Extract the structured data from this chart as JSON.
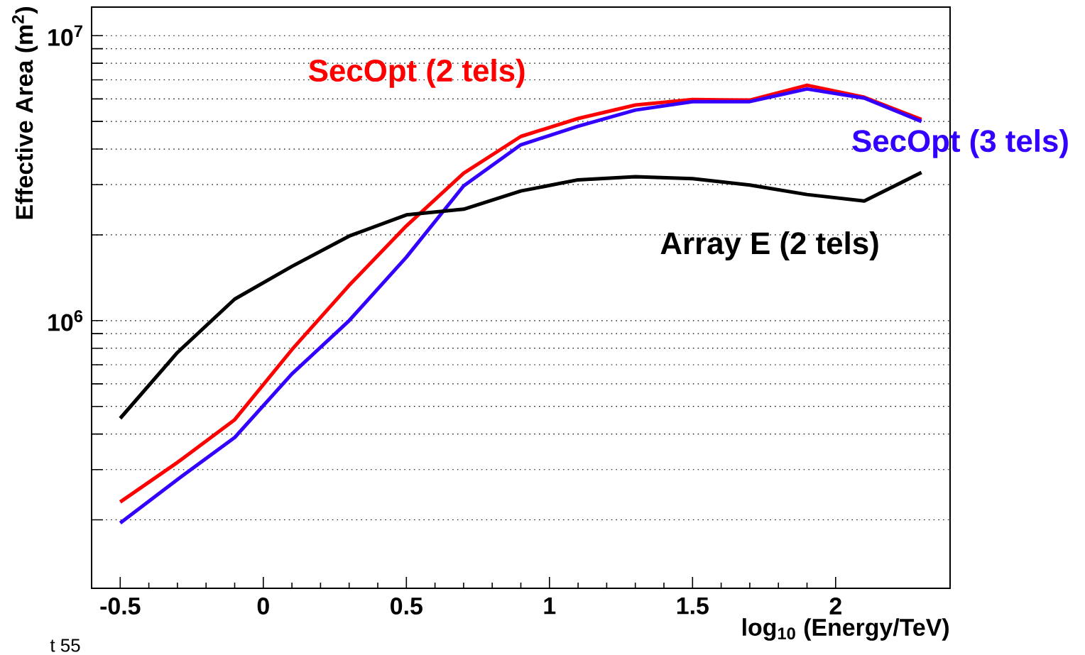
{
  "chart_data": {
    "type": "line",
    "xlabel": "log$_{10}$ (Energy/TeV)",
    "ylabel": "Effective Area (m$^{2}$)",
    "x": [
      -0.5,
      -0.3,
      -0.1,
      0.1,
      0.3,
      0.5,
      0.7,
      0.9,
      1.1,
      1.3,
      1.5,
      1.7,
      1.9,
      2.1,
      2.3
    ],
    "series": [
      {
        "name": "SecOpt (2 tels)",
        "color": "#ff0000",
        "values": [
          231000,
          318000,
          449000,
          791000,
          1330000,
          2150000,
          3290000,
          4430000,
          5120000,
          5710000,
          5970000,
          5940000,
          6700000,
          6080000,
          5080000
        ]
      },
      {
        "name": "SecOpt (3 tels)",
        "color": "#3300ff",
        "values": [
          195000,
          277000,
          389000,
          650000,
          1000000,
          1670000,
          2970000,
          4140000,
          4810000,
          5480000,
          5870000,
          5870000,
          6500000,
          6040000,
          5000000
        ]
      },
      {
        "name": "Array E (2 tels)",
        "color": "#000000",
        "values": [
          454000,
          773000,
          1190000,
          1550000,
          1980000,
          2350000,
          2460000,
          2850000,
          3120000,
          3200000,
          3150000,
          2990000,
          2770000,
          2630000,
          3310000
        ]
      }
    ],
    "log": "y",
    "xlim": [
      -0.6,
      2.4
    ],
    "ylim": [
      115000,
      12600000
    ],
    "xticks": [
      -0.5,
      0,
      0.5,
      1,
      1.5,
      2
    ],
    "yticks": [
      {
        "value": 200000,
        "label": null
      },
      {
        "value": 300000,
        "label": null
      },
      {
        "value": 400000,
        "label": null
      },
      {
        "value": 500000,
        "label": null
      },
      {
        "value": 600000,
        "label": null
      },
      {
        "value": 700000,
        "label": null
      },
      {
        "value": 800000,
        "label": null
      },
      {
        "value": 900000,
        "label": null
      },
      {
        "value": 1000000,
        "label": "10$^{6}$"
      },
      {
        "value": 2000000,
        "label": null
      },
      {
        "value": 3000000,
        "label": null
      },
      {
        "value": 4000000,
        "label": null
      },
      {
        "value": 5000000,
        "label": null
      },
      {
        "value": 6000000,
        "label": null
      },
      {
        "value": 7000000,
        "label": null
      },
      {
        "value": 8000000,
        "label": null
      },
      {
        "value": 9000000,
        "label": null
      },
      {
        "value": 10000000,
        "label": "10$^{7}$"
      }
    ],
    "grid": "y",
    "line_style": "solid",
    "marker": "none",
    "annotations": [
      "t 55"
    ]
  }
}
